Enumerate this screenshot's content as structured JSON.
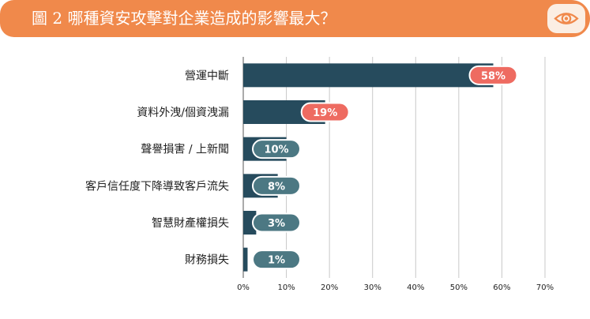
{
  "header": {
    "title": "圖 2 哪種資安攻擊對企業造成的影響最大？",
    "icon": "eye-icon",
    "banner_color": "#f0894b"
  },
  "chart_data": {
    "type": "bar",
    "orientation": "horizontal",
    "title": "",
    "xlabel": "",
    "ylabel": "",
    "categories": [
      "營運中斷",
      "資料外洩/個資洩漏",
      "聲譽損害 / 上新聞",
      "客戶信任度下降導致客戶流失",
      "智慧財產權損失",
      "財務損失"
    ],
    "values": [
      58,
      19,
      10,
      8,
      3,
      1
    ],
    "value_labels": [
      "58%",
      "19%",
      "10%",
      "8%",
      "3%",
      "1%"
    ],
    "xlim": [
      0,
      70
    ],
    "xticks": [
      "0%",
      "10%",
      "20%",
      "30%",
      "40%",
      "50%",
      "60%",
      "70%"
    ],
    "grid": true,
    "legend": "none",
    "colors": {
      "bar": "#264b5d",
      "highlight_pill": "#ee6b61",
      "pill": "#4c7883",
      "grid": "#c8c8c8"
    },
    "highlighted": [
      0,
      1
    ]
  }
}
